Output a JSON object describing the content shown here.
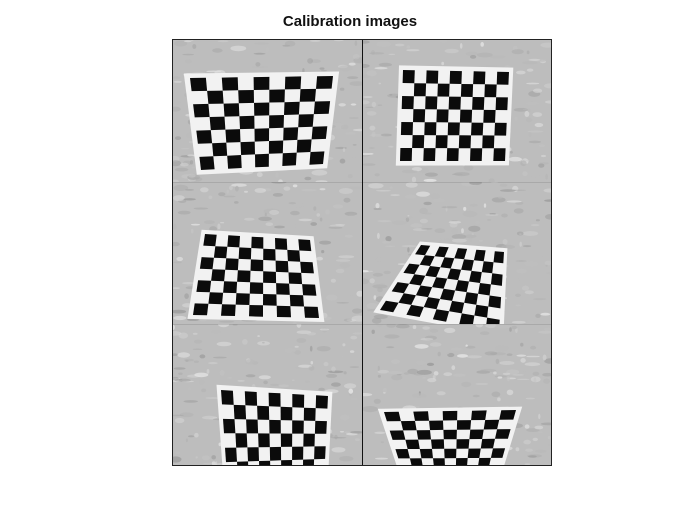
{
  "figure": {
    "title": "Calibration images"
  }
}
